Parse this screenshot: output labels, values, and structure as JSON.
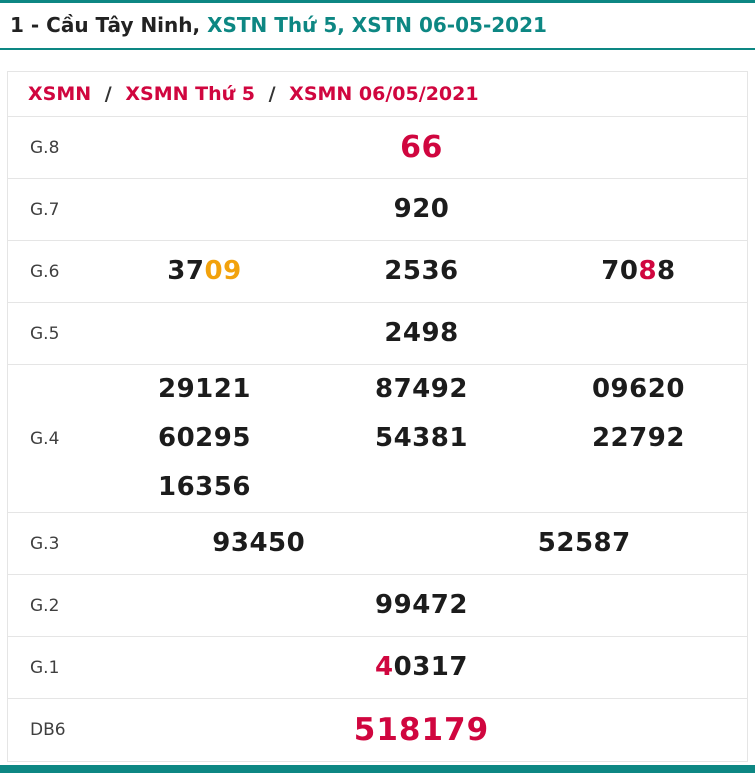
{
  "colors": {
    "teal": "#0d8783",
    "red": "#d0063f",
    "orange": "#f2a20c",
    "ink": "#1c1c1c",
    "label": "#3f3f3f",
    "border": "#e5e5e5"
  },
  "header": {
    "title_prefix": "1 - Cầu Tây Ninh,",
    "title_highlight": "XSTN Thứ 5, XSTN 06-05-2021"
  },
  "breadcrumb": {
    "separator": "/",
    "items": [
      "XSMN",
      "XSMN Thứ 5",
      "XSMN 06/05/2021"
    ]
  },
  "table": {
    "rows": [
      {
        "label": "G.8",
        "cols": 1,
        "style": "g8",
        "cells": [
          [
            {
              "t": "66",
              "c": "red"
            }
          ]
        ]
      },
      {
        "label": "G.7",
        "cols": 1,
        "cells": [
          [
            {
              "t": "920"
            }
          ]
        ]
      },
      {
        "label": "G.6",
        "cols": 3,
        "cells": [
          [
            {
              "t": "37"
            },
            {
              "t": "09",
              "c": "orange"
            }
          ],
          [
            {
              "t": "2536"
            }
          ],
          [
            {
              "t": "70"
            },
            {
              "t": "8",
              "c": "red"
            },
            {
              "t": "8"
            }
          ]
        ]
      },
      {
        "label": "G.5",
        "cols": 1,
        "cells": [
          [
            {
              "t": "2498"
            }
          ]
        ]
      },
      {
        "label": "G.4",
        "cols": 3,
        "cells": [
          [
            {
              "t": "29121"
            }
          ],
          [
            {
              "t": "87492"
            }
          ],
          [
            {
              "t": "09620"
            }
          ],
          [
            {
              "t": "60295"
            }
          ],
          [
            {
              "t": "54381"
            }
          ],
          [
            {
              "t": "22792"
            }
          ],
          [
            {
              "t": "16356"
            }
          ]
        ]
      },
      {
        "label": "G.3",
        "cols": 2,
        "cells": [
          [
            {
              "t": "93450"
            }
          ],
          [
            {
              "t": "52587"
            }
          ]
        ]
      },
      {
        "label": "G.2",
        "cols": 1,
        "cells": [
          [
            {
              "t": "99472"
            }
          ]
        ]
      },
      {
        "label": "G.1",
        "cols": 1,
        "cells": [
          [
            {
              "t": "4",
              "c": "red"
            },
            {
              "t": "0317"
            }
          ]
        ]
      },
      {
        "label": "DB6",
        "cols": 1,
        "style": "db",
        "cells": [
          [
            {
              "t": "518179",
              "c": "red"
            }
          ]
        ]
      }
    ]
  }
}
